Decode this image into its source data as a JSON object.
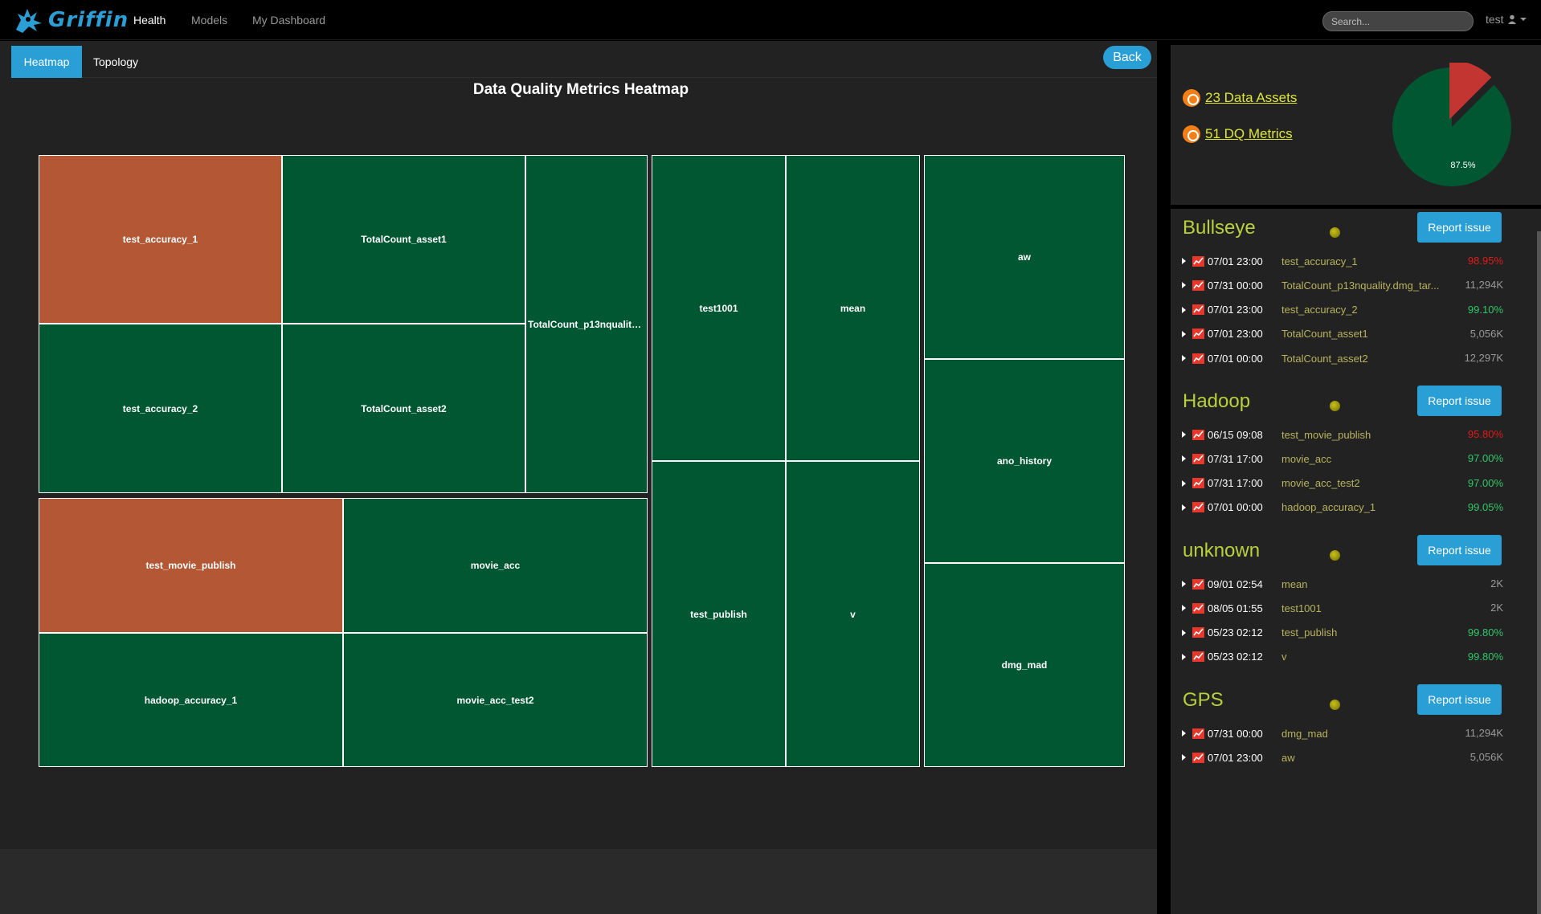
{
  "nav": {
    "brand": "Griffin",
    "links": [
      "Health",
      "Models",
      "My Dashboard"
    ],
    "search_placeholder": "Search...",
    "user": "test"
  },
  "tabs": [
    "Heatmap",
    "Topology"
  ],
  "back_label": "Back",
  "heatmap": {
    "title": "Data Quality Metrics Heatmap",
    "colors": {
      "healthy": "#005732",
      "unhealthy": "#b35735"
    },
    "cells": [
      {
        "label": "test_accuracy_1",
        "status": "unhealthy"
      },
      {
        "label": "TotalCount_asset1",
        "status": "healthy"
      },
      {
        "label": "TotalCount_p13nquality.dmg_tar...",
        "status": "healthy"
      },
      {
        "label": "test_accuracy_2",
        "status": "healthy"
      },
      {
        "label": "TotalCount_asset2",
        "status": "healthy"
      },
      {
        "label": "test1001",
        "status": "healthy"
      },
      {
        "label": "mean",
        "status": "healthy"
      },
      {
        "label": "aw",
        "status": "healthy"
      },
      {
        "label": "ano_history",
        "status": "healthy"
      },
      {
        "label": "test_publish",
        "status": "healthy"
      },
      {
        "label": "v",
        "status": "healthy"
      },
      {
        "label": "dmg_mad",
        "status": "healthy"
      },
      {
        "label": "test_movie_publish",
        "status": "unhealthy"
      },
      {
        "label": "movie_acc",
        "status": "healthy"
      },
      {
        "label": "hadoop_accuracy_1",
        "status": "healthy"
      },
      {
        "label": "movie_acc_test2",
        "status": "healthy"
      }
    ]
  },
  "summary": {
    "data_assets": "23 Data Assets",
    "dq_metrics": "51 DQ Metrics",
    "pie_label": "87.5%",
    "pie_healthy_fraction": 0.875,
    "pie_colors": {
      "healthy": "#005732",
      "unhealthy": "#c23531"
    }
  },
  "groups": [
    {
      "name": "Bullseye",
      "report": "Report issue",
      "rows": [
        {
          "date": "07/01 23:00",
          "name": "test_accuracy_1",
          "value": "98.95%",
          "color": "#e01a1a"
        },
        {
          "date": "07/31 00:00",
          "name": "TotalCount_p13nquality.dmg_tar...",
          "value": "11,294K",
          "color": "#999999"
        },
        {
          "date": "07/01 23:00",
          "name": "test_accuracy_2",
          "value": "99.10%",
          "color": "#2ec768"
        },
        {
          "date": "07/01 23:00",
          "name": "TotalCount_asset1",
          "value": "5,056K",
          "color": "#999999"
        },
        {
          "date": "07/01 00:00",
          "name": "TotalCount_asset2",
          "value": "12,297K",
          "color": "#999999"
        }
      ]
    },
    {
      "name": "Hadoop",
      "report": "Report issue",
      "rows": [
        {
          "date": "06/15 09:08",
          "name": "test_movie_publish",
          "value": "95.80%",
          "color": "#e01a1a"
        },
        {
          "date": "07/31 17:00",
          "name": "movie_acc",
          "value": "97.00%",
          "color": "#2ec768"
        },
        {
          "date": "07/31 17:00",
          "name": "movie_acc_test2",
          "value": "97.00%",
          "color": "#2ec768"
        },
        {
          "date": "07/01 00:00",
          "name": "hadoop_accuracy_1",
          "value": "99.05%",
          "color": "#2ec768"
        }
      ]
    },
    {
      "name": "unknown",
      "report": "Report issue",
      "rows": [
        {
          "date": "09/01 02:54",
          "name": "mean",
          "value": "2K",
          "color": "#999999"
        },
        {
          "date": "08/05 01:55",
          "name": "test1001",
          "value": "2K",
          "color": "#999999"
        },
        {
          "date": "05/23 02:12",
          "name": "test_publish",
          "value": "99.80%",
          "color": "#2ec768"
        },
        {
          "date": "05/23 02:12",
          "name": "v",
          "value": "99.80%",
          "color": "#2ec768"
        }
      ]
    },
    {
      "name": "GPS",
      "report": "Report issue",
      "rows": [
        {
          "date": "07/31 00:00",
          "name": "dmg_mad",
          "value": "11,294K",
          "color": "#999999"
        },
        {
          "date": "07/01 23:00",
          "name": "aw",
          "value": "5,056K",
          "color": "#999999"
        }
      ]
    }
  ]
}
